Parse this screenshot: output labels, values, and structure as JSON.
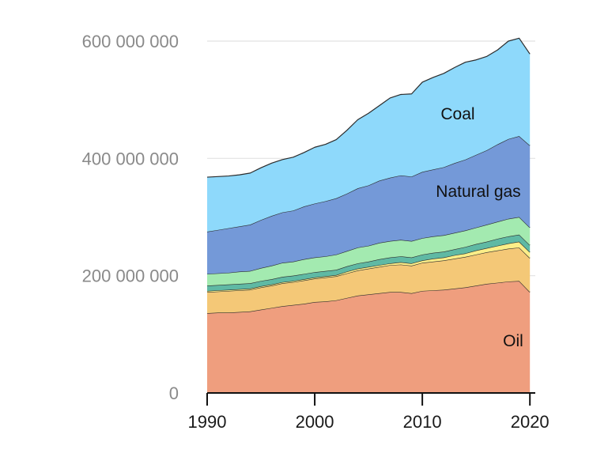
{
  "chart_data": {
    "type": "area",
    "stacked": true,
    "x": [
      1990,
      1991,
      1992,
      1993,
      1994,
      1995,
      1996,
      1997,
      1998,
      1999,
      2000,
      2001,
      2002,
      2003,
      2004,
      2005,
      2006,
      2007,
      2008,
      2009,
      2010,
      2011,
      2012,
      2013,
      2014,
      2015,
      2016,
      2017,
      2018,
      2019,
      2020
    ],
    "series": [
      {
        "name": "Oil",
        "color": "#ef9e7e",
        "values": [
          136000000,
          137000000,
          137000000,
          138000000,
          139000000,
          142000000,
          145000000,
          148000000,
          150000000,
          152000000,
          155000000,
          156000000,
          158000000,
          162000000,
          166000000,
          168000000,
          170000000,
          172000000,
          172000000,
          170000000,
          174000000,
          175000000,
          176000000,
          178000000,
          180000000,
          183000000,
          186000000,
          188000000,
          190000000,
          191000000,
          172000000
        ]
      },
      {
        "color": "#f4c877",
        "values": [
          36000000,
          36000000,
          37000000,
          37000000,
          37000000,
          38000000,
          38000000,
          39000000,
          39000000,
          40000000,
          40000000,
          41000000,
          41000000,
          42000000,
          43000000,
          44000000,
          45000000,
          46000000,
          47000000,
          47000000,
          48000000,
          49000000,
          50000000,
          51000000,
          52000000,
          53000000,
          54000000,
          55000000,
          56000000,
          57000000,
          58000000
        ]
      },
      {
        "color": "#fcee88",
        "values": [
          2000000,
          2000000,
          2000000,
          2000000,
          2000000,
          2000000,
          2000000,
          2000000,
          2000000,
          2000000,
          2000000,
          2000000,
          2000000,
          3000000,
          3000000,
          3000000,
          3000000,
          3000000,
          4000000,
          4000000,
          4000000,
          5000000,
          5000000,
          6000000,
          6000000,
          7000000,
          7000000,
          8000000,
          9000000,
          10000000,
          10000000
        ]
      },
      {
        "color": "#5fb9a4",
        "values": [
          9000000,
          9000000,
          9000000,
          9000000,
          9000000,
          9000000,
          9000000,
          9000000,
          9000000,
          9000000,
          9000000,
          9000000,
          9000000,
          9000000,
          9000000,
          9000000,
          10000000,
          10000000,
          10000000,
          10000000,
          10000000,
          10000000,
          10000000,
          10000000,
          11000000,
          11000000,
          11000000,
          12000000,
          12000000,
          12000000,
          12000000
        ]
      },
      {
        "color": "#a3eab0",
        "values": [
          20000000,
          20000000,
          20000000,
          21000000,
          21000000,
          22000000,
          23000000,
          24000000,
          24000000,
          25000000,
          25000000,
          25000000,
          26000000,
          26000000,
          27000000,
          27000000,
          28000000,
          28000000,
          28000000,
          28000000,
          28000000,
          28000000,
          28000000,
          28000000,
          28000000,
          28000000,
          29000000,
          29000000,
          30000000,
          30000000,
          30000000
        ]
      },
      {
        "name": "Natural gas",
        "color": "#7499d8",
        "values": [
          72000000,
          74000000,
          76000000,
          77000000,
          79000000,
          82000000,
          85000000,
          86000000,
          87000000,
          90000000,
          92000000,
          94000000,
          96000000,
          98000000,
          101000000,
          103000000,
          106000000,
          108000000,
          110000000,
          110000000,
          113000000,
          114000000,
          116000000,
          119000000,
          121000000,
          124000000,
          127000000,
          132000000,
          136000000,
          138000000,
          140000000
        ]
      },
      {
        "name": "Coal",
        "color": "#8ed9fb",
        "values": [
          93000000,
          91000000,
          89000000,
          88000000,
          88000000,
          89000000,
          90000000,
          90000000,
          91000000,
          92000000,
          96000000,
          97000000,
          100000000,
          108000000,
          117000000,
          123000000,
          128000000,
          136000000,
          138000000,
          141000000,
          153000000,
          157000000,
          160000000,
          163000000,
          166000000,
          162000000,
          160000000,
          161000000,
          167000000,
          167000000,
          156000000
        ]
      }
    ],
    "xlim": [
      1990,
      2020.5
    ],
    "ylim": [
      0,
      600000000
    ],
    "xticks": [
      1990,
      2000,
      2010,
      2020
    ],
    "yticks": [
      0,
      200000000,
      400000000,
      600000000
    ],
    "xtick_labels": [
      "1990",
      "2000",
      "2010",
      "2020"
    ],
    "ytick_labels": [
      "0",
      "200 000 000",
      "400 000 000",
      "600 000 000"
    ],
    "grid": true,
    "legend": "inline labels on areas"
  }
}
